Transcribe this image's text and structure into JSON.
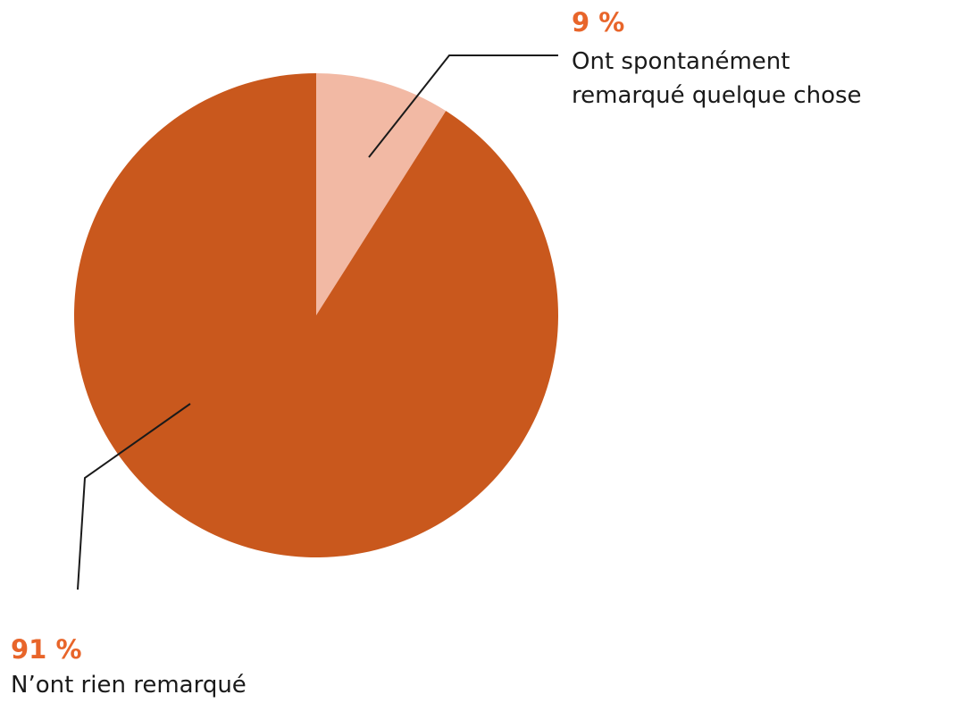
{
  "chart_data": {
    "type": "pie",
    "categories": [
      "Ont spontanément\nremarqué quelque chose",
      "N’ont rien remarqué"
    ],
    "values": [
      9,
      91
    ],
    "value_labels": [
      "9 %",
      "91 %"
    ],
    "colors": [
      "#f2b9a4",
      "#c9581d"
    ]
  }
}
